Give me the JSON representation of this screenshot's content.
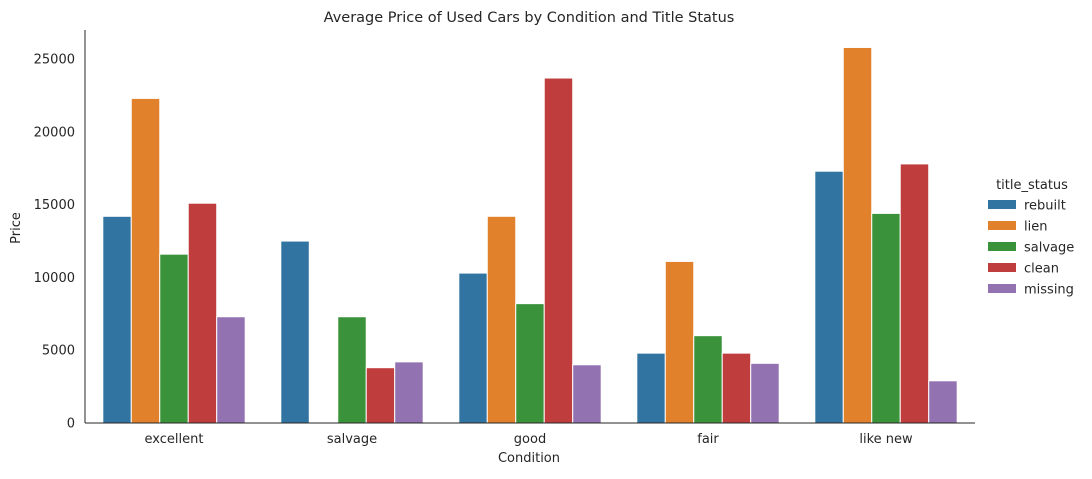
{
  "chart_data": {
    "type": "bar",
    "title": "Average Price of Used Cars by Condition and Title Status",
    "xlabel": "Condition",
    "ylabel": "Price",
    "categories": [
      "excellent",
      "salvage",
      "good",
      "fair",
      "like new"
    ],
    "ylim": [
      0,
      27000
    ],
    "yticks": [
      0,
      5000,
      10000,
      15000,
      20000,
      25000
    ],
    "grid": false,
    "legend": {
      "title": "title_status",
      "placement": "right"
    },
    "series": [
      {
        "name": "rebuilt",
        "color": "#3274a1",
        "values": [
          14200,
          12500,
          10300,
          4800,
          17300
        ]
      },
      {
        "name": "lien",
        "color": "#e1812c",
        "values": [
          22300,
          0,
          14200,
          11100,
          25800
        ]
      },
      {
        "name": "salvage",
        "color": "#3a923a",
        "values": [
          11600,
          7300,
          8200,
          6000,
          14400
        ]
      },
      {
        "name": "clean",
        "color": "#c03d3e",
        "values": [
          15100,
          3800,
          23700,
          4800,
          17800
        ]
      },
      {
        "name": "missing",
        "color": "#9372b2",
        "values": [
          7300,
          4200,
          4000,
          4100,
          2900
        ]
      }
    ]
  }
}
